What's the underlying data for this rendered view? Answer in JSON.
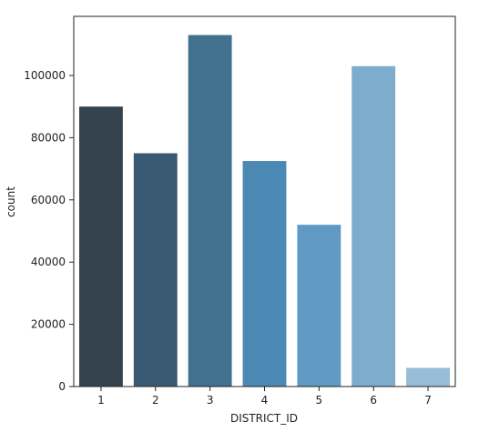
{
  "chart_data": {
    "type": "bar",
    "xlabel": "DISTRICT_ID",
    "ylabel": "count",
    "categories": [
      "1",
      "2",
      "3",
      "4",
      "5",
      "6",
      "7"
    ],
    "values": [
      90000,
      75000,
      113000,
      72500,
      52000,
      103000,
      6000
    ],
    "ylim": [
      0,
      119000
    ],
    "yticks": [
      0,
      20000,
      40000,
      60000,
      80000,
      100000
    ],
    "colors": [
      "#35434f",
      "#3a5a73",
      "#42708f",
      "#4b88b4",
      "#6099c4",
      "#7daccd",
      "#97bcd8"
    ],
    "grid": false,
    "legend": "none"
  }
}
